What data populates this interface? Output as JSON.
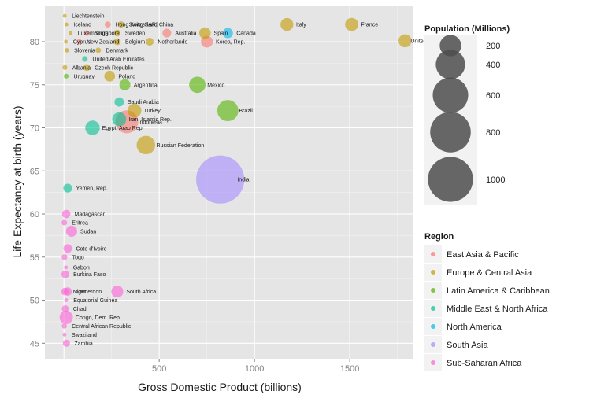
{
  "chart_data": {
    "type": "scatter",
    "xlabel": "Gross Domestic Product (billions)",
    "ylabel": "Life Expectancy at birth (years)",
    "xlim": [
      -100,
      1830
    ],
    "ylim": [
      43.2,
      84.2
    ],
    "x_ticks": [
      500,
      1000,
      1500
    ],
    "y_ticks": [
      45,
      50,
      55,
      60,
      65,
      70,
      75,
      80
    ],
    "x_tick_labels": [
      "500",
      "1000",
      "1500"
    ],
    "y_tick_labels": [
      "45",
      "50",
      "55",
      "60",
      "65",
      "70",
      "75",
      "80"
    ],
    "grid": true,
    "size_legend": {
      "title": "Population (Millions)",
      "values": [
        200,
        400,
        600,
        800,
        1000
      ],
      "labels": [
        "200",
        "400",
        "600",
        "800",
        "1000"
      ]
    },
    "color_legend": {
      "title": "Region",
      "placement": "right",
      "entries": [
        {
          "name": "East Asia & Pacific",
          "color": "#f8766d"
        },
        {
          "name": "Europe & Central Asia",
          "color": "#c49a00"
        },
        {
          "name": "Latin America & Caribbean",
          "color": "#53b400"
        },
        {
          "name": "Middle East & North Africa",
          "color": "#00c094"
        },
        {
          "name": "North America",
          "color": "#00b6eb"
        },
        {
          "name": "South Asia",
          "color": "#a58aff"
        },
        {
          "name": "Sub-Saharan Africa",
          "color": "#fb61d7"
        }
      ]
    },
    "points": [
      {
        "label": "Liechtenstein",
        "x": 4,
        "y": 83.0,
        "pop": 1,
        "region": 1
      },
      {
        "label": "Iceland",
        "x": 13,
        "y": 82.0,
        "pop": 1,
        "region": 1
      },
      {
        "label": "Hong Kong SAR, China",
        "x": 230,
        "y": 82.0,
        "pop": 7,
        "region": 0
      },
      {
        "label": "Switzerland",
        "x": 300,
        "y": 82.0,
        "pop": 8,
        "region": 1
      },
      {
        "label": "Italy",
        "x": 1170,
        "y": 82.0,
        "pop": 59,
        "region": 1
      },
      {
        "label": "France",
        "x": 1510,
        "y": 82.0,
        "pop": 63,
        "region": 1
      },
      {
        "label": "Luxembourg",
        "x": 35,
        "y": 81.0,
        "pop": 1,
        "region": 1
      },
      {
        "label": "Singapore",
        "x": 120,
        "y": 81.0,
        "pop": 5,
        "region": 0
      },
      {
        "label": "Sweden",
        "x": 280,
        "y": 81.0,
        "pop": 9,
        "region": 1
      },
      {
        "label": "Australia",
        "x": 540,
        "y": 81.0,
        "pop": 21,
        "region": 0
      },
      {
        "label": "Spain",
        "x": 740,
        "y": 81.0,
        "pop": 45,
        "region": 1
      },
      {
        "label": "Canada",
        "x": 860,
        "y": 81.0,
        "pop": 33,
        "region": 4
      },
      {
        "label": "United Kingdom",
        "x": 1790,
        "y": 80.1,
        "pop": 61,
        "region": 1
      },
      {
        "label": "Cyprus",
        "x": 10,
        "y": 80.0,
        "pop": 1,
        "region": 1
      },
      {
        "label": "New Zealand",
        "x": 80,
        "y": 80.0,
        "pop": 4,
        "region": 0
      },
      {
        "label": "Belgium",
        "x": 280,
        "y": 80.0,
        "pop": 11,
        "region": 1
      },
      {
        "label": "Netherlands",
        "x": 450,
        "y": 80.0,
        "pop": 16,
        "region": 1
      },
      {
        "label": "Korea, Rep.",
        "x": 750,
        "y": 80.0,
        "pop": 48,
        "region": 0
      },
      {
        "label": "Slovenia",
        "x": 15,
        "y": 79.0,
        "pop": 2,
        "region": 1
      },
      {
        "label": "Denmark",
        "x": 180,
        "y": 79.0,
        "pop": 5,
        "region": 1
      },
      {
        "label": "United Arab Emirates",
        "x": 110,
        "y": 78.0,
        "pop": 5,
        "region": 3
      },
      {
        "label": "Albania",
        "x": 5,
        "y": 77.0,
        "pop": 3,
        "region": 1
      },
      {
        "label": "Czech Republic",
        "x": 120,
        "y": 77.0,
        "pop": 10,
        "region": 1
      },
      {
        "label": "Uruguay",
        "x": 12,
        "y": 76.0,
        "pop": 3,
        "region": 2
      },
      {
        "label": "Poland",
        "x": 240,
        "y": 76.0,
        "pop": 38,
        "region": 1
      },
      {
        "label": "Argentina",
        "x": 320,
        "y": 75.0,
        "pop": 40,
        "region": 2
      },
      {
        "label": "Mexico",
        "x": 700,
        "y": 75.0,
        "pop": 107,
        "region": 2
      },
      {
        "label": "Saudi Arabia",
        "x": 290,
        "y": 73.0,
        "pop": 26,
        "region": 3
      },
      {
        "label": "Brazil",
        "x": 860,
        "y": 72.0,
        "pop": 192,
        "region": 2
      },
      {
        "label": "Turkey",
        "x": 370,
        "y": 72.0,
        "pop": 71,
        "region": 1
      },
      {
        "label": "Iran, Islamic Rep.",
        "x": 290,
        "y": 71.0,
        "pop": 72,
        "region": 3
      },
      {
        "label": "Indonesia",
        "x": 330,
        "y": 70.7,
        "pop": 230,
        "region": 0
      },
      {
        "label": "Egypt, Arab Rep.",
        "x": 150,
        "y": 70.0,
        "pop": 80,
        "region": 3
      },
      {
        "label": "Russian Federation",
        "x": 430,
        "y": 68.0,
        "pop": 142,
        "region": 1
      },
      {
        "label": "India",
        "x": 820,
        "y": 64.0,
        "pop": 1150,
        "region": 5
      },
      {
        "label": "Yemen, Rep.",
        "x": 20,
        "y": 63.0,
        "pop": 22,
        "region": 3
      },
      {
        "label": "Madagascar",
        "x": 12,
        "y": 60.0,
        "pop": 19,
        "region": 6
      },
      {
        "label": "Eritrea",
        "x": 2,
        "y": 59.0,
        "pop": 5,
        "region": 6
      },
      {
        "label": "Sudan",
        "x": 40,
        "y": 58.0,
        "pop": 41,
        "region": 6
      },
      {
        "label": "Cote d'Ivoire",
        "x": 20,
        "y": 56.0,
        "pop": 20,
        "region": 6
      },
      {
        "label": "Togo",
        "x": 3,
        "y": 55.0,
        "pop": 6,
        "region": 6
      },
      {
        "label": "Gabon",
        "x": 10,
        "y": 53.8,
        "pop": 1,
        "region": 6
      },
      {
        "label": "Burkina Faso",
        "x": 7,
        "y": 53.0,
        "pop": 15,
        "region": 6
      },
      {
        "label": "Niger",
        "x": 5,
        "y": 51.0,
        "pop": 14,
        "region": 6
      },
      {
        "label": "Cameroon",
        "x": 20,
        "y": 51.0,
        "pop": 19,
        "region": 6
      },
      {
        "label": "South Africa",
        "x": 280,
        "y": 51.0,
        "pop": 49,
        "region": 6
      },
      {
        "label": "Equatorial Guinea",
        "x": 12,
        "y": 50.0,
        "pop": 1,
        "region": 6
      },
      {
        "label": "Chad",
        "x": 7,
        "y": 49.0,
        "pop": 11,
        "region": 6
      },
      {
        "label": "Congo, Dem. Rep.",
        "x": 12,
        "y": 48.0,
        "pop": 64,
        "region": 6
      },
      {
        "label": "Central African Republic",
        "x": 2,
        "y": 47.0,
        "pop": 4,
        "region": 6
      },
      {
        "label": "Swaziland",
        "x": 3,
        "y": 46.0,
        "pop": 1,
        "region": 6
      },
      {
        "label": "Zambia",
        "x": 13,
        "y": 45.0,
        "pop": 12,
        "region": 6
      }
    ]
  }
}
